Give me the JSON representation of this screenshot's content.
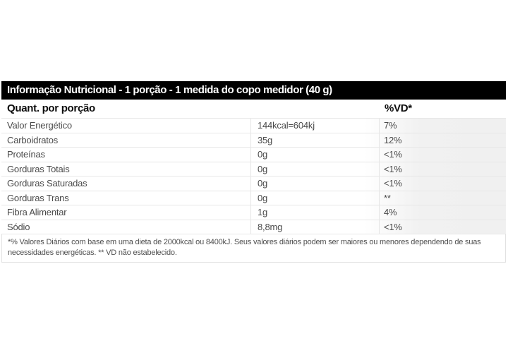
{
  "panel": {
    "title": "Informação Nutricional - 1 porção - 1 medida do copo medidor (40 g)",
    "header": {
      "quant_label": "Quant. por porção",
      "vd_label": "%VD*"
    },
    "rows": [
      {
        "label": "Valor Energético",
        "amount": "144kcal=604kj",
        "vd": "7%"
      },
      {
        "label": "Carboidratos",
        "amount": "35g",
        "vd": "12%"
      },
      {
        "label": "Proteínas",
        "amount": "0g",
        "vd": "<1%"
      },
      {
        "label": "Gorduras Totais",
        "amount": "0g",
        "vd": "<1%"
      },
      {
        "label": "Gorduras Saturadas",
        "amount": "0g",
        "vd": "<1%"
      },
      {
        "label": "Gorduras Trans",
        "amount": "0g",
        "vd": "**"
      },
      {
        "label": "Fibra Alimentar",
        "amount": "1g",
        "vd": "4%"
      },
      {
        "label": "Sódio",
        "amount": "8,8mg",
        "vd": "<1%"
      }
    ],
    "footnote": "*% Valores Diários com base em uma dieta de 2000kcal ou 8400kJ. Seus valores diários podem ser maiores ou menores dependendo de suas necessidades energéticas. ** VD não estabelecido.",
    "colors": {
      "title_bar_bg": "#000000",
      "title_bar_text": "#ffffff",
      "header_text": "#0d0d0d",
      "row_text": "#4a4a4a",
      "row_shade": "#f1f1f1",
      "border": "#e7e7e7"
    }
  }
}
